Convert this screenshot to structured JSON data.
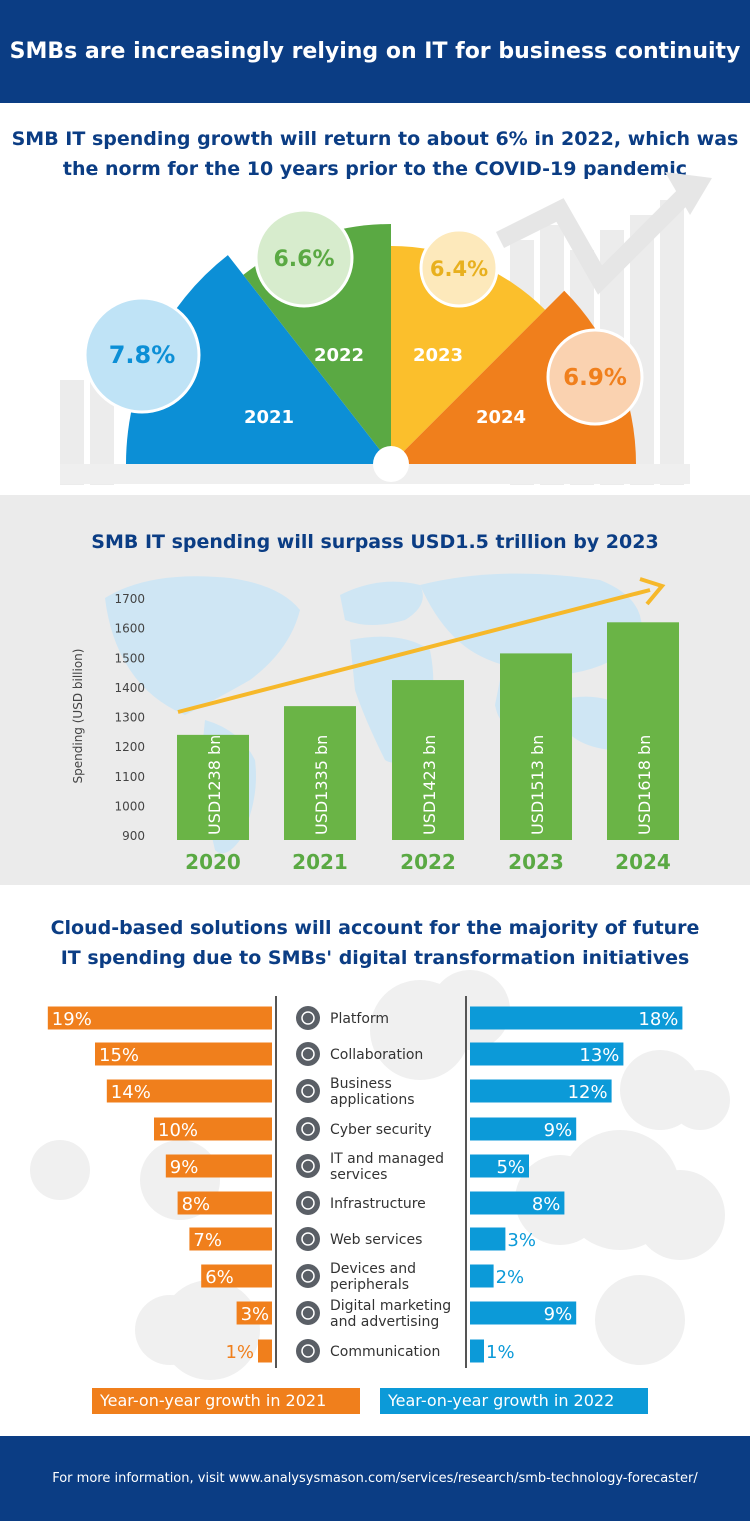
{
  "header": {
    "title": "SMBs are increasingly relying on IT for business continuity"
  },
  "section1": {
    "heading_line1": "SMB IT spending growth will return to about 6% in 2022, which was",
    "heading_line2": "the norm for the 10 years prior to the COVID-19 pandemic",
    "segments": [
      {
        "year": "2021",
        "value": "7.8%",
        "color": "#0c8fd6",
        "bubble": "#bfe3f6",
        "text": "#0c8fd6"
      },
      {
        "year": "2022",
        "value": "6.6%",
        "color": "#5aa943",
        "bubble": "#d7eccd",
        "text": "#5aa943"
      },
      {
        "year": "2023",
        "value": "6.4%",
        "color": "#fbbf2c",
        "bubble": "#fde9bb",
        "text": "#e8b01e"
      },
      {
        "year": "2024",
        "value": "6.9%",
        "color": "#f07f1c",
        "bubble": "#fad2b0",
        "text": "#f07f1c"
      }
    ]
  },
  "section2": {
    "heading": "SMB IT spending will surpass USD1.5 trillion by 2023"
  },
  "chart_data": [
    {
      "type": "bar",
      "title": "SMB IT spending will surpass USD1.5 trillion by 2023",
      "ylabel": "Spending (USD billion)",
      "ylim": [
        900,
        1700
      ],
      "yticks": [
        900,
        1000,
        1100,
        1200,
        1300,
        1400,
        1500,
        1600,
        1700
      ],
      "categories": [
        "2020",
        "2021",
        "2022",
        "2023",
        "2024"
      ],
      "values": [
        1238,
        1335,
        1423,
        1513,
        1618
      ],
      "labels": [
        "USD1238 bn",
        "USD1335 bn",
        "USD1423 bn",
        "USD1513 bn",
        "USD1618 bn"
      ],
      "color": "#6ab446"
    },
    {
      "type": "bar",
      "title": "Cloud-based solutions will account for the majority of future IT spending due to SMBs' digital transformation initiatives",
      "categories": [
        "Platform",
        "Collaboration",
        "Business applications",
        "Cyber security",
        "IT and managed services",
        "Infrastructure",
        "Web services",
        "Devices and peripherals",
        "Digital marketing and advertising",
        "Communication"
      ],
      "series": [
        {
          "name": "Year-on-year growth in 2021",
          "values": [
            19,
            15,
            14,
            10,
            9,
            8,
            7,
            6,
            3,
            1
          ],
          "labels": [
            "19%",
            "15%",
            "14%",
            "10%",
            "9%",
            "8%",
            "7%",
            "6%",
            "3%",
            "1%"
          ],
          "color": "#f07f1c"
        },
        {
          "name": "Year-on-year growth in 2022",
          "values": [
            18,
            13,
            12,
            9,
            5,
            8,
            3,
            2,
            9,
            1
          ],
          "labels": [
            "18%",
            "13%",
            "12%",
            "9%",
            "5%",
            "8%",
            "3%",
            "2%",
            "9%",
            "1%"
          ],
          "color": "#0c9ad8"
        }
      ]
    }
  ],
  "section3": {
    "heading_line1": "Cloud-based solutions will account for the majority of future",
    "heading_line2": "IT spending due to SMBs' digital transformation initiatives",
    "category_lines": [
      [
        "Platform"
      ],
      [
        "Collaboration"
      ],
      [
        "Business",
        "applications"
      ],
      [
        "Cyber security"
      ],
      [
        "IT and managed",
        "services"
      ],
      [
        "Infrastructure"
      ],
      [
        "Web services"
      ],
      [
        "Devices and",
        "peripherals"
      ],
      [
        "Digital marketing",
        "and advertising"
      ],
      [
        "Communication"
      ]
    ],
    "icons": [
      "platform-icon",
      "collaboration-icon",
      "business-applications-icon",
      "cyber-security-icon",
      "it-managed-services-icon",
      "infrastructure-icon",
      "web-services-icon",
      "devices-icon",
      "digital-marketing-icon",
      "communication-icon"
    ]
  },
  "footer": {
    "text": "For more information, visit www.analysysmason.com/services/research/smb-technology-forecaster/"
  }
}
